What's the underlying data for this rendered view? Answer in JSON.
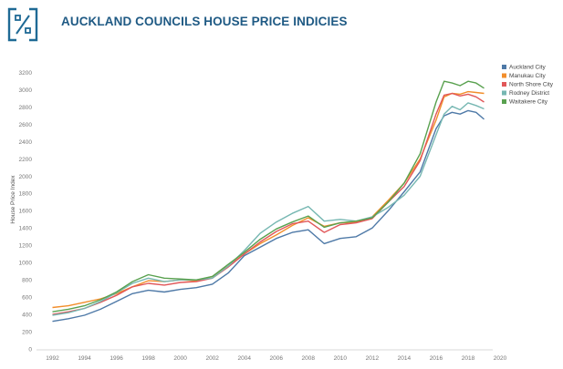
{
  "header": {
    "title": "AUCKLAND COUNCILS HOUSE PRICE INDICIES",
    "logo_icon": "percent-icon",
    "logo_color": "#1f6a95"
  },
  "chart_data": {
    "type": "line",
    "title": "AUCKLAND COUNCILS HOUSE PRICE INDICIES",
    "xlabel": "",
    "ylabel": "House Price Index",
    "xlim": [
      1991,
      2020
    ],
    "ylim": [
      0,
      3250
    ],
    "xticks": [
      1992,
      1994,
      1996,
      1998,
      2000,
      2002,
      2004,
      2006,
      2008,
      2010,
      2012,
      2014,
      2016,
      2018,
      2020
    ],
    "yticks": [
      0,
      200,
      400,
      600,
      800,
      1000,
      1200,
      1400,
      1600,
      1800,
      2000,
      2200,
      2400,
      2600,
      2800,
      3000,
      3200
    ],
    "grid": false,
    "legend_position": "top-right",
    "series": [
      {
        "name": "Auckland City",
        "color": "#4e79a7",
        "x": [
          1992,
          1993,
          1994,
          1995,
          1996,
          1997,
          1998,
          1999,
          2000,
          2001,
          2002,
          2003,
          2004,
          2005,
          2006,
          2007,
          2008,
          2009,
          2010,
          2011,
          2012,
          2013,
          2014,
          2015,
          2016,
          2016.5,
          2017,
          2017.5,
          2018,
          2018.5,
          2019
        ],
        "y": [
          320,
          350,
          390,
          460,
          550,
          640,
          680,
          660,
          690,
          710,
          750,
          880,
          1080,
          1180,
          1280,
          1350,
          1380,
          1220,
          1280,
          1300,
          1400,
          1600,
          1820,
          2050,
          2550,
          2700,
          2740,
          2720,
          2760,
          2740,
          2660
        ]
      },
      {
        "name": "Manukau City",
        "color": "#f28e2b",
        "x": [
          1992,
          1993,
          1994,
          1995,
          1996,
          1997,
          1998,
          1999,
          2000,
          2001,
          2002,
          2003,
          2004,
          2005,
          2006,
          2007,
          2008,
          2009,
          2010,
          2011,
          2012,
          2013,
          2014,
          2015,
          2016,
          2016.5,
          2017,
          2017.5,
          2018,
          2018.5,
          2019
        ],
        "y": [
          480,
          500,
          540,
          580,
          640,
          720,
          790,
          780,
          800,
          790,
          840,
          960,
          1100,
          1220,
          1320,
          1430,
          1520,
          1420,
          1460,
          1470,
          1530,
          1720,
          1920,
          2200,
          2650,
          2920,
          2960,
          2950,
          2980,
          2970,
          2960
        ]
      },
      {
        "name": "North Shore City",
        "color": "#e15759",
        "x": [
          1992,
          1993,
          1994,
          1995,
          1996,
          1997,
          1998,
          1999,
          2000,
          2001,
          2002,
          2003,
          2004,
          2005,
          2006,
          2007,
          2008,
          2009,
          2010,
          2011,
          2012,
          2013,
          2014,
          2015,
          2016,
          2016.5,
          2017,
          2017.5,
          2018,
          2018.5,
          2019
        ],
        "y": [
          400,
          430,
          470,
          540,
          620,
          720,
          760,
          740,
          770,
          780,
          820,
          950,
          1100,
          1240,
          1360,
          1450,
          1480,
          1350,
          1440,
          1460,
          1510,
          1700,
          1880,
          2180,
          2720,
          2940,
          2960,
          2930,
          2950,
          2920,
          2860
        ]
      },
      {
        "name": "Rodney District",
        "color": "#76b7b2",
        "x": [
          1992,
          1993,
          1994,
          1995,
          1996,
          1997,
          1998,
          1999,
          2000,
          2001,
          2002,
          2003,
          2004,
          2005,
          2006,
          2007,
          2008,
          2009,
          2010,
          2011,
          2012,
          2013,
          2014,
          2015,
          2016,
          2016.5,
          2017,
          2017.5,
          2018,
          2018.5,
          2019
        ],
        "y": [
          390,
          420,
          470,
          550,
          650,
          760,
          820,
          780,
          800,
          800,
          820,
          960,
          1140,
          1340,
          1470,
          1570,
          1650,
          1480,
          1500,
          1480,
          1530,
          1640,
          1780,
          2000,
          2480,
          2720,
          2810,
          2770,
          2850,
          2820,
          2780
        ]
      },
      {
        "name": "Waitakere City",
        "color": "#59a14f",
        "x": [
          1992,
          1993,
          1994,
          1995,
          1996,
          1997,
          1998,
          1999,
          2000,
          2001,
          2002,
          2003,
          2004,
          2005,
          2006,
          2007,
          2008,
          2009,
          2010,
          2011,
          2012,
          2013,
          2014,
          2015,
          2016,
          2016.5,
          2017,
          2017.5,
          2018,
          2018.5,
          2019
        ],
        "y": [
          430,
          460,
          500,
          570,
          660,
          780,
          860,
          820,
          810,
          800,
          840,
          980,
          1120,
          1270,
          1390,
          1470,
          1540,
          1410,
          1460,
          1480,
          1520,
          1700,
          1920,
          2260,
          2860,
          3100,
          3080,
          3050,
          3100,
          3080,
          3020
        ]
      }
    ]
  }
}
